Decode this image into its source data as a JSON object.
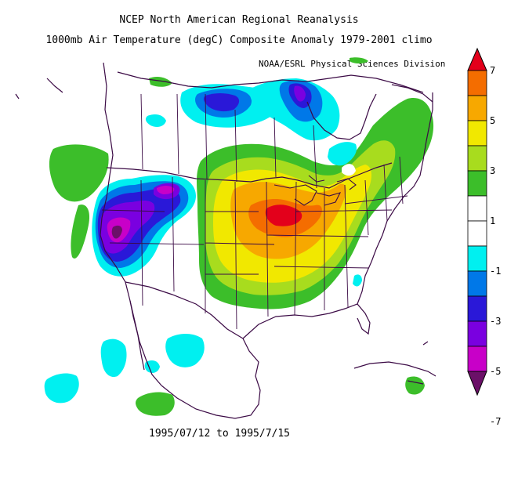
{
  "title": "NCEP North American Regional Reanalysis",
  "subtitle": "1000mb Air Temperature (degC) Composite Anomaly 1979-2001 climo",
  "credit": "NOAA/ESRL Physical Sciences Division",
  "date_range": "1995/07/12 to 1995/7/15",
  "colorbar": {
    "labels": [
      "7",
      "5",
      "3",
      "1",
      "-1",
      "-3",
      "-5",
      "-7"
    ],
    "colors": [
      "#e3001b",
      "#f46d00",
      "#f7a800",
      "#f1e800",
      "#a8dc1e",
      "#3cbe2a",
      "#ffffff",
      "#ffffff",
      "#00f0f0",
      "#0078e8",
      "#2a18d8",
      "#7a00e0",
      "#c800c8",
      "#6b1068"
    ]
  },
  "colors": {
    "coast": "#3b0a45",
    "warm_strong": "#e3001b",
    "warm": "#f7a800",
    "cool": "#7a00e0"
  }
}
